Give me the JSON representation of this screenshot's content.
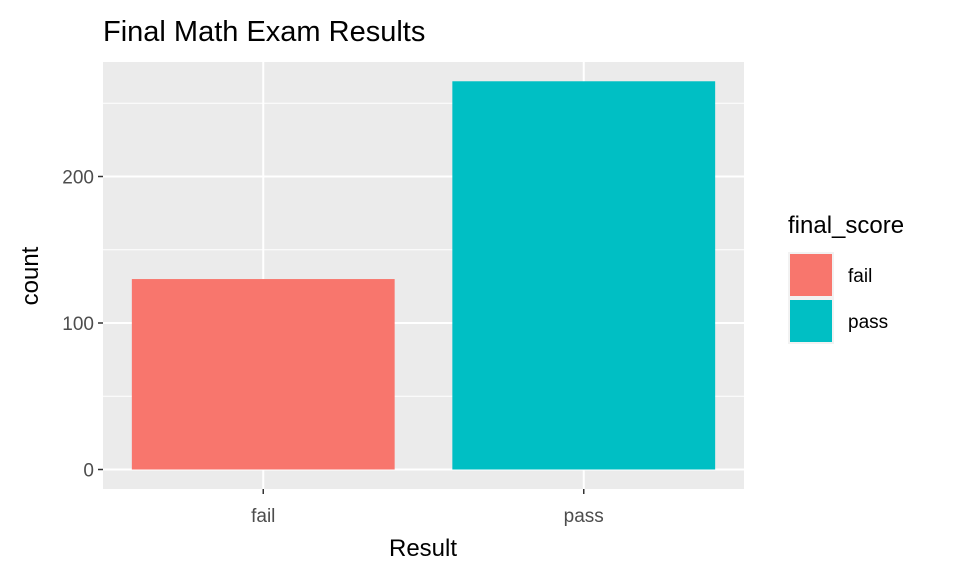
{
  "chart_data": {
    "type": "bar",
    "title": "Final Math Exam Results",
    "xlabel": "Result",
    "ylabel": "count",
    "categories": [
      "fail",
      "pass"
    ],
    "values": [
      130,
      265
    ],
    "colors": [
      "#F8766D",
      "#00BFC4"
    ],
    "ylim": [
      0,
      272
    ],
    "yticks": [
      0,
      100,
      200
    ],
    "ytick_labels": [
      "0",
      "100",
      "200"
    ],
    "grid": true,
    "panel_background": "#EBEBEB",
    "legend": {
      "title": "final_score",
      "placement": "right",
      "entries": [
        {
          "label": "fail",
          "color": "#F8766D"
        },
        {
          "label": "pass",
          "color": "#00BFC4"
        }
      ]
    }
  }
}
